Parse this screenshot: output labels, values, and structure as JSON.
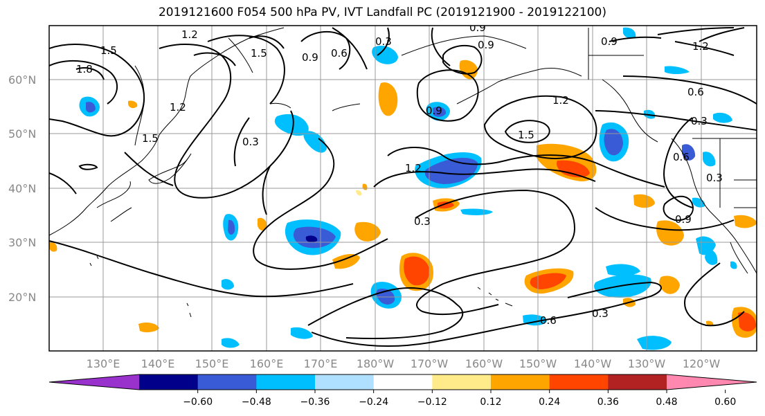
{
  "title": "2019121600 F054 500 hPa PV, IVT Landfall PC (2019121900 - 2019122100)",
  "lat_labels": [
    "60°N",
    "50°N",
    "40°N",
    "30°N",
    "20°N"
  ],
  "lon_labels": [
    "130°E",
    "140°E",
    "150°E",
    "160°E",
    "170°E",
    "180°W",
    "170°W",
    "160°W",
    "150°W",
    "140°W",
    "130°W",
    "120°W"
  ],
  "colorbar": {
    "ticks": [
      "−0.60",
      "−0.48",
      "−0.36",
      "−0.24",
      "−0.12",
      "0.12",
      "0.24",
      "0.36",
      "0.48",
      "0.60"
    ],
    "colors": [
      "#9932cc",
      "#00008b",
      "#3a5bd6",
      "#00bfff",
      "#b0e0ff",
      "#ffffff",
      "#ffeb8a",
      "#ffa500",
      "#ff4500",
      "#b22222",
      "#ff88b0"
    ]
  },
  "contour_labels": [
    "1.5",
    "1.8",
    "1.2",
    "1.5",
    "1.5",
    "0.9",
    "0.6",
    "0.3",
    "0.3",
    "0.9",
    "0.9",
    "1.2",
    "1.5",
    "0.9",
    "0.6",
    "0.3",
    "1.2",
    "0.3",
    "0.6",
    "0.9",
    "0.3",
    "0.6",
    "0.3",
    "1.2",
    "0.9",
    "1.2"
  ],
  "shading": {
    "negative_colors": [
      "#00bfff",
      "#3a5bd6",
      "#00008b"
    ],
    "positive_colors": [
      "#ffeb8a",
      "#ffa500",
      "#ff4500"
    ]
  }
}
